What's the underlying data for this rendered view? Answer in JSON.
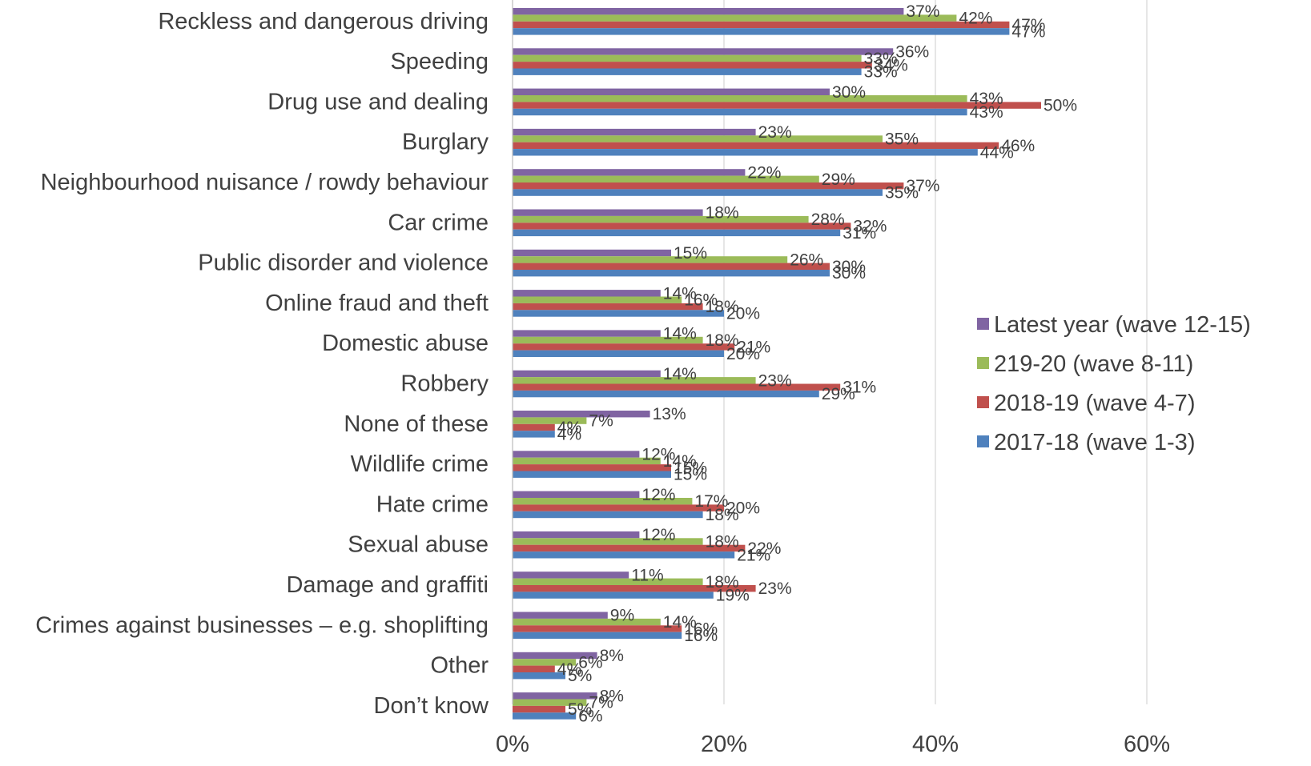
{
  "chart_data": {
    "type": "bar",
    "orientation": "horizontal",
    "title": "",
    "xlabel": "",
    "ylabel": "",
    "xlim": [
      0,
      70
    ],
    "x_ticks": [
      "0%",
      "20%",
      "40%",
      "60%"
    ],
    "x_tick_values": [
      0,
      20,
      40,
      60
    ],
    "grid": "vertical",
    "legend_position": "right",
    "categories": [
      "Reckless and dangerous driving",
      "Speeding",
      "Drug use and dealing",
      "Burglary",
      "Neighbourhood nuisance / rowdy behaviour",
      "Car crime",
      "Public disorder and violence",
      "Online fraud and theft",
      "Domestic abuse",
      "Robbery",
      "None of these",
      "Wildlife crime",
      "Hate crime",
      "Sexual abuse",
      "Damage and graffiti",
      "Crimes against businesses – e.g. shoplifting",
      "Other",
      "Don’t know"
    ],
    "series": [
      {
        "name": "Latest year (wave 12-15)",
        "color": "#8064A2",
        "values": [
          37,
          36,
          30,
          23,
          22,
          18,
          15,
          14,
          14,
          14,
          13,
          12,
          12,
          12,
          11,
          9,
          8,
          8
        ]
      },
      {
        "name": "219-20 (wave 8-11)",
        "color": "#9BBB59",
        "values": [
          42,
          33,
          43,
          35,
          29,
          28,
          26,
          16,
          18,
          23,
          7,
          14,
          17,
          18,
          18,
          14,
          6,
          7
        ]
      },
      {
        "name": "2018-19 (wave 4-7)",
        "color": "#C0504D",
        "values": [
          47,
          34,
          50,
          46,
          37,
          32,
          30,
          18,
          21,
          31,
          4,
          15,
          20,
          22,
          23,
          16,
          4,
          5
        ]
      },
      {
        "name": "2017-18 (wave 1-3)",
        "color": "#4F81BD",
        "values": [
          47,
          33,
          43,
          44,
          35,
          31,
          30,
          20,
          20,
          29,
          4,
          15,
          18,
          21,
          19,
          16,
          5,
          6
        ]
      }
    ],
    "value_suffix": "%"
  }
}
